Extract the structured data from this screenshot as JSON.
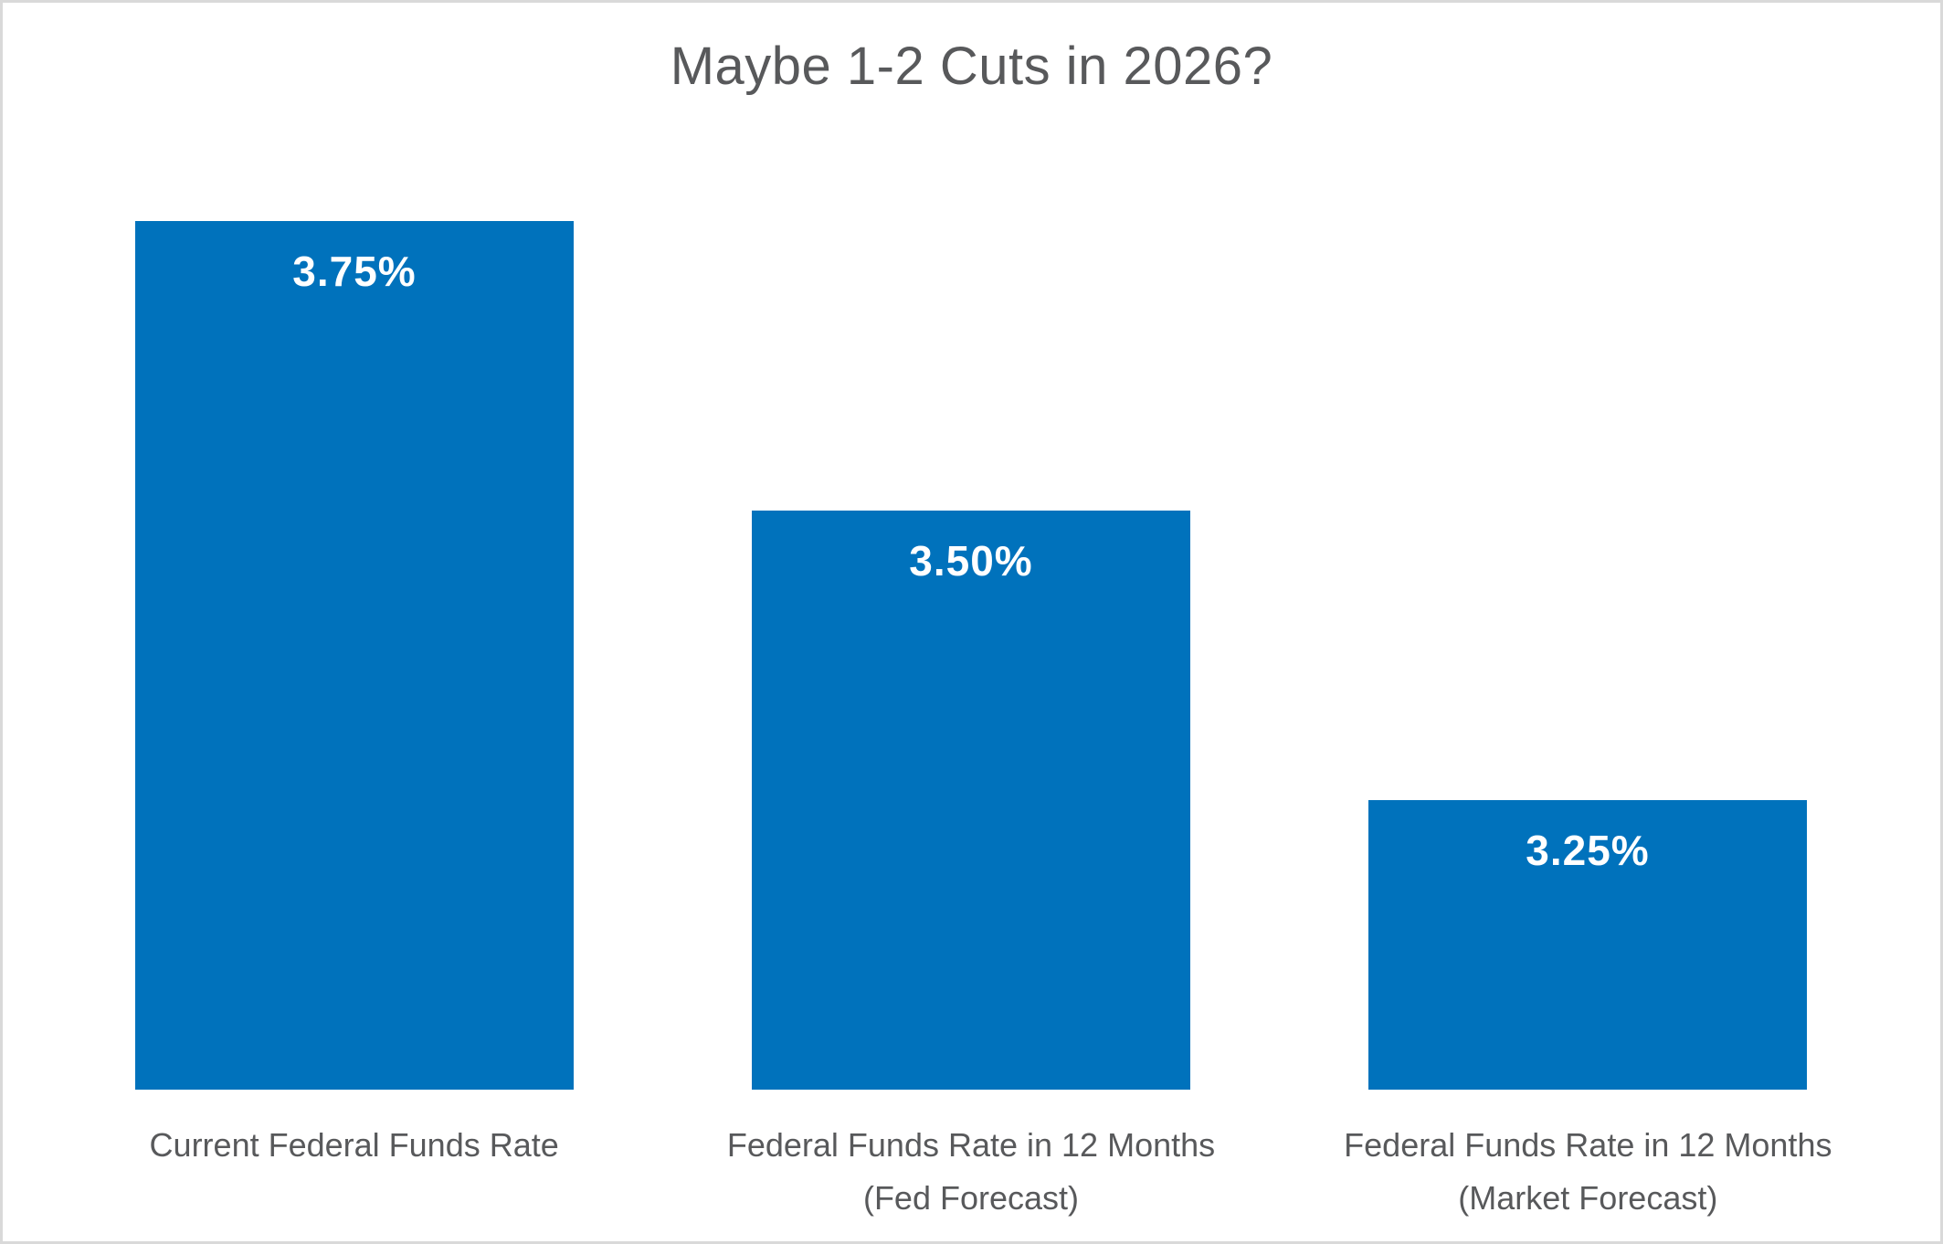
{
  "title": "Maybe 1-2 Cuts in 2026?",
  "colors": {
    "bar_fill": "#0072BC",
    "title_text": "#58595B",
    "category_text": "#58595B",
    "value_text": "#FFFFFF",
    "background": "#FFFFFF",
    "border": "#D9D9D9"
  },
  "chart_data": {
    "type": "bar",
    "title": "Maybe 1-2 Cuts in 2026?",
    "categories": [
      "Current Federal Funds Rate",
      "Federal Funds Rate in 12 Months (Fed Forecast)",
      "Federal Funds Rate in 12 Months (Market Forecast)"
    ],
    "category_lines": [
      [
        "Current Federal Funds Rate",
        ""
      ],
      [
        "Federal Funds Rate in 12 Months",
        "(Fed Forecast)"
      ],
      [
        "Federal Funds Rate in 12 Months",
        "(Market Forecast)"
      ]
    ],
    "values": [
      3.75,
      3.5,
      3.25
    ],
    "value_labels": [
      "3.75%",
      "3.50%",
      "3.25%"
    ],
    "xlabel": "",
    "ylabel": "",
    "ylim": [
      3.0,
      3.75
    ],
    "grid": false,
    "legend": null,
    "bar_color": "#0072BC"
  }
}
